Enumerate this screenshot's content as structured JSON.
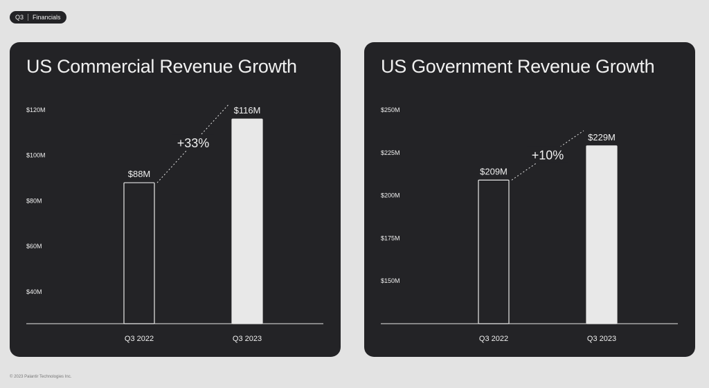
{
  "header": {
    "tag_q": "Q3",
    "tag_section": "Financials"
  },
  "footer": {
    "copyright": "© 2023 Palantir Technologies Inc."
  },
  "colors": {
    "panel_bg": "#232326",
    "bar_outline": "#e8e8e8",
    "bar_fill": "#e8e8e8",
    "text": "#f0f0f0"
  },
  "chart_data": [
    {
      "type": "bar",
      "title": "US Commercial Revenue Growth",
      "categories": [
        "Q3 2022",
        "Q3 2023"
      ],
      "values": [
        88,
        116
      ],
      "value_labels": [
        "$88M",
        "$116M"
      ],
      "ticks": [
        40,
        60,
        80,
        100,
        120
      ],
      "tick_labels": [
        "$40M",
        "$60M",
        "$80M",
        "$100M",
        "$120M"
      ],
      "ylim": [
        26,
        120
      ],
      "growth_label": "+33%",
      "bar_styles": [
        "outline",
        "filled"
      ]
    },
    {
      "type": "bar",
      "title": "US Government Revenue Growth",
      "categories": [
        "Q3 2022",
        "Q3 2023"
      ],
      "values": [
        209,
        229
      ],
      "value_labels": [
        "$209M",
        "$229M"
      ],
      "ticks": [
        150,
        175,
        200,
        225,
        250
      ],
      "tick_labels": [
        "$150M",
        "$175M",
        "$200M",
        "$225M",
        "$250M"
      ],
      "ylim": [
        125,
        250
      ],
      "growth_label": "+10%",
      "bar_styles": [
        "outline",
        "filled"
      ]
    }
  ]
}
